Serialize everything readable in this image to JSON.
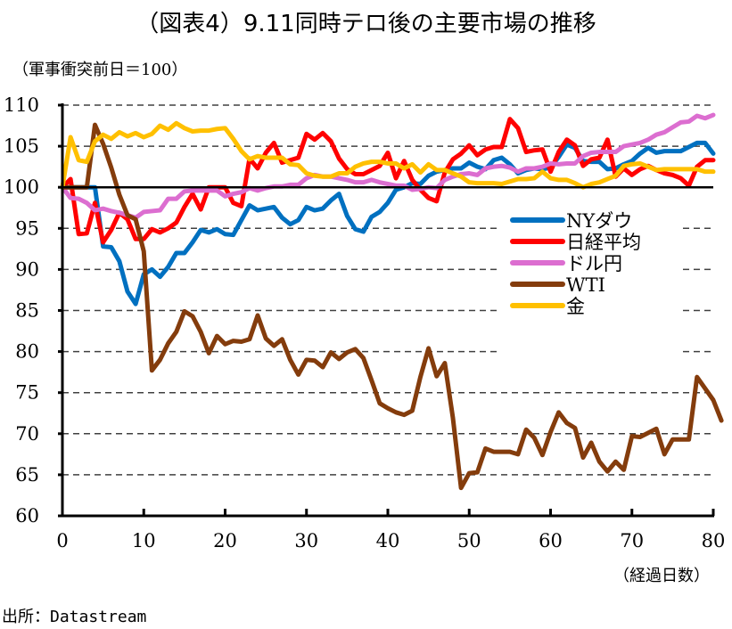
{
  "chart_data": {
    "type": "line",
    "title": "（図表4）9.11同時テロ後の主要市場の推移",
    "subtitle": "（軍事衝突前日＝100）",
    "xlabel": "（経過日数）",
    "ylabel": "",
    "source": "出所：Datastream",
    "xlim": [
      0,
      80
    ],
    "ylim": [
      60,
      110
    ],
    "xticks": [
      0,
      10,
      20,
      30,
      40,
      50,
      60,
      70,
      80
    ],
    "yticks": [
      60,
      65,
      70,
      75,
      80,
      85,
      90,
      95,
      100,
      105,
      110
    ],
    "grid": true,
    "baseline": 100,
    "legend_position": "center-right",
    "series": [
      {
        "name": "NYダウ",
        "color": "#0070C0",
        "values": [
          100,
          100,
          100,
          100,
          100,
          92.8,
          92.7,
          91,
          87.3,
          85.8,
          89.4,
          90,
          89.1,
          90.3,
          92,
          92,
          93.3,
          94.8,
          94.5,
          94.9,
          94.3,
          94.2,
          96,
          97.8,
          97.2,
          97.4,
          97.6,
          96.3,
          95.5,
          96,
          97.6,
          97.2,
          97.4,
          98.4,
          99.2,
          96.5,
          94.9,
          94.6,
          96.4,
          97,
          98.1,
          99.7,
          100,
          100.5,
          100.4,
          101.4,
          101.9,
          102.1,
          102.3,
          102.3,
          103,
          102.5,
          102.2,
          103.3,
          103.6,
          102.8,
          101.7,
          102.1,
          102.3,
          102.2,
          102.4,
          103.7,
          105.2,
          104.8,
          103.2,
          103.1,
          103.1,
          102.2,
          102.3,
          102.8,
          103.2,
          104.1,
          104.8,
          104.2,
          104.4,
          104.4,
          104.4,
          104.9,
          105.4,
          105.4,
          104.1
        ]
      },
      {
        "name": "日経平均",
        "color": "#FF0000",
        "values": [
          100,
          101,
          94.3,
          94.4,
          98.1,
          93.3,
          94.8,
          96.9,
          96.1,
          93.7,
          93.7,
          94.9,
          94.5,
          95,
          95.7,
          97.6,
          99.2,
          97.3,
          100,
          100,
          100,
          98.1,
          97.7,
          103.5,
          102.3,
          104.2,
          105.4,
          103,
          103.3,
          103.6,
          106.5,
          105.8,
          106.6,
          105.6,
          103.5,
          102.2,
          101.6,
          101.6,
          102.1,
          102.6,
          104.2,
          101.1,
          103.2,
          100.9,
          99.7,
          98.7,
          98.3,
          101.8,
          103.4,
          104.1,
          105.1,
          103.9,
          104.6,
          104.9,
          104.9,
          108.3,
          107.2,
          104.3,
          104.5,
          104.6,
          101.9,
          104.3,
          105.8,
          105.1,
          102.6,
          103.4,
          103.6,
          105.8,
          101.3,
          102.3,
          101.5,
          102.2,
          102.6,
          102.1,
          101.7,
          101.5,
          101.1,
          100.2,
          102.5,
          103.3,
          103.3
        ]
      },
      {
        "name": "ドル円",
        "color": "#DC6ED0",
        "values": [
          100,
          98.7,
          98.6,
          98.1,
          97.2,
          97.4,
          97.1,
          96.9,
          96.6,
          96.3,
          97,
          97.1,
          97.2,
          98.6,
          98.6,
          99.5,
          99.6,
          99.6,
          99.6,
          99.6,
          98.9,
          99.2,
          99.4,
          99.9,
          99.6,
          99.9,
          100.1,
          100.1,
          100.3,
          100.3,
          101.1,
          101.5,
          101.3,
          101.3,
          101.1,
          100.9,
          100.6,
          100.6,
          100.9,
          100.6,
          100.4,
          100.2,
          100.2,
          99.7,
          99.8,
          100,
          99.9,
          100.9,
          101.3,
          101.6,
          101.7,
          101.5,
          102.3,
          102.5,
          102.6,
          102.4,
          101.9,
          102.3,
          102.3,
          102.5,
          102.9,
          102.8,
          102.9,
          102.9,
          103.8,
          104.2,
          104.3,
          104.3,
          104.3,
          105,
          105.2,
          105.4,
          105.8,
          106.4,
          106.7,
          107.3,
          107.9,
          108,
          108.7,
          108.4,
          108.8
        ]
      },
      {
        "name": "WTI",
        "color": "#843C0C",
        "values": [
          100,
          100,
          100,
          100,
          107.6,
          105.3,
          102.4,
          99.1,
          96.6,
          96.1,
          92.2,
          77.7,
          79,
          81,
          82.4,
          84.9,
          84.3,
          82.4,
          79.8,
          81.9,
          80.9,
          81.3,
          81.2,
          81.5,
          84.4,
          81.6,
          80.7,
          81.5,
          79,
          77.2,
          79,
          78.9,
          78.1,
          79.9,
          79.1,
          79.9,
          80.3,
          79.2,
          76.5,
          73.7,
          73.1,
          72.6,
          72.3,
          72.8,
          76.9,
          80.4,
          77,
          78.6,
          71.9,
          63.4,
          65.2,
          65.3,
          68.2,
          67.8,
          67.8,
          67.8,
          67.5,
          70.5,
          69.5,
          67.4,
          70.2,
          72.6,
          71.3,
          70.7,
          67.1,
          68.9,
          66.6,
          65.4,
          66.6,
          65.6,
          69.7,
          69.6,
          70.1,
          70.6,
          67.5,
          69.3,
          69.3,
          69.3,
          76.9,
          75.5,
          74.1,
          71.6
        ]
      },
      {
        "name": "金",
        "color": "#FFC000",
        "values": [
          100,
          106.1,
          103.3,
          103.1,
          105.6,
          106.4,
          105.9,
          106.7,
          106.2,
          106.6,
          106.1,
          106.5,
          107.5,
          107,
          107.8,
          107.2,
          106.8,
          106.9,
          106.9,
          107.1,
          107.2,
          105.9,
          104.4,
          103.4,
          103.8,
          103.6,
          103.6,
          103.6,
          102.8,
          102.7,
          101.7,
          101.4,
          101.3,
          101.3,
          101.7,
          101.7,
          102.5,
          102.9,
          103.1,
          103.1,
          102.9,
          102.9,
          102.3,
          102.8,
          101.8,
          102.8,
          102.1,
          102.1,
          101.7,
          101.3,
          100.6,
          100.5,
          100.5,
          100.5,
          100.4,
          100.7,
          101,
          101,
          101.1,
          101.9,
          101.1,
          100.9,
          100.9,
          100.5,
          100,
          100.4,
          100.6,
          101,
          101.4,
          102.6,
          102.8,
          102.9,
          102.5,
          102.1,
          102.2,
          102.2,
          102.2,
          102.2,
          102.2,
          101.9,
          101.9
        ]
      }
    ]
  }
}
